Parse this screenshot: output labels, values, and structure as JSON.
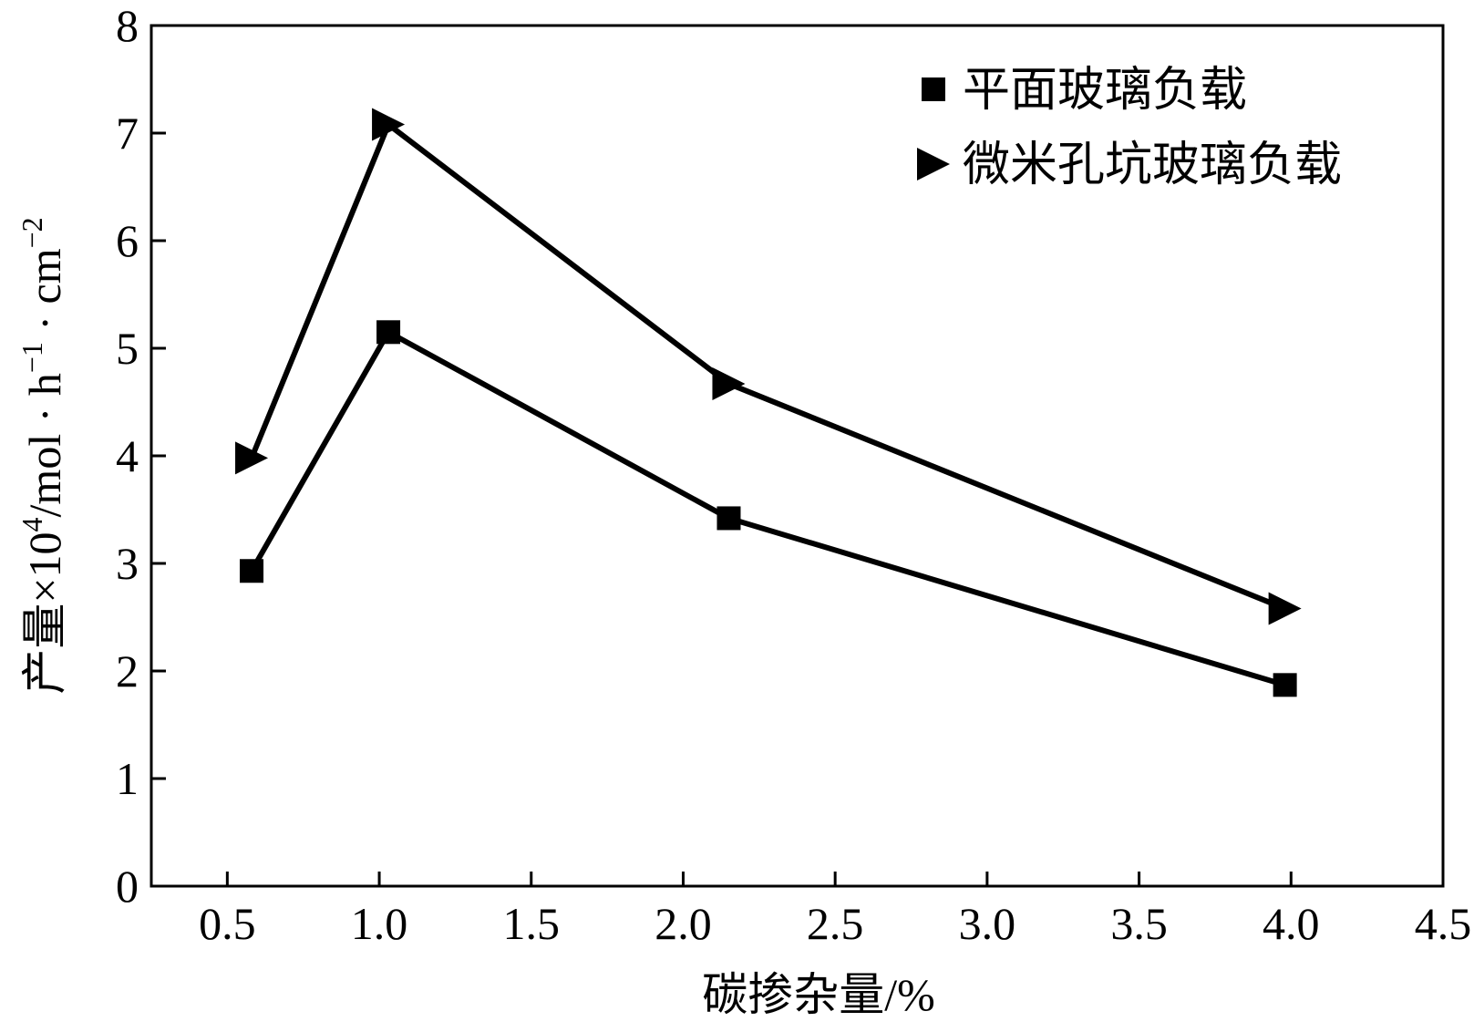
{
  "chart_data": {
    "type": "line",
    "title": "",
    "xlabel": "碳掺杂量/%",
    "ylabel": {
      "prefix": "产量×10",
      "sup1": "4",
      "mid1": "/mol · h",
      "sup2": "−1",
      "mid2": " · cm",
      "sup3": "−2"
    },
    "xlim": [
      0.25,
      4.5
    ],
    "ylim": [
      0,
      8
    ],
    "xticks": [
      0.5,
      1.0,
      1.5,
      2.0,
      2.5,
      3.0,
      3.5,
      4.0,
      4.5
    ],
    "xtick_labels": [
      "0.5",
      "1.0",
      "1.5",
      "2.0",
      "2.5",
      "3.0",
      "3.5",
      "4.0",
      "4.5"
    ],
    "yticks": [
      0,
      1,
      2,
      3,
      4,
      5,
      6,
      7,
      8
    ],
    "ytick_labels": [
      "0",
      "1",
      "2",
      "3",
      "4",
      "5",
      "6",
      "7",
      "8"
    ],
    "grid": false,
    "legend_position": "top-right",
    "series": [
      {
        "name": "平面玻璃负载",
        "marker": "square",
        "color": "#000000",
        "x": [
          0.58,
          1.03,
          2.15,
          3.98
        ],
        "y": [
          2.93,
          5.15,
          3.42,
          1.87
        ]
      },
      {
        "name": "微米孔坑玻璃负载",
        "marker": "triangle-right",
        "color": "#000000",
        "x": [
          0.58,
          1.03,
          2.15,
          3.98
        ],
        "y": [
          3.98,
          7.08,
          4.67,
          2.58
        ]
      }
    ]
  }
}
